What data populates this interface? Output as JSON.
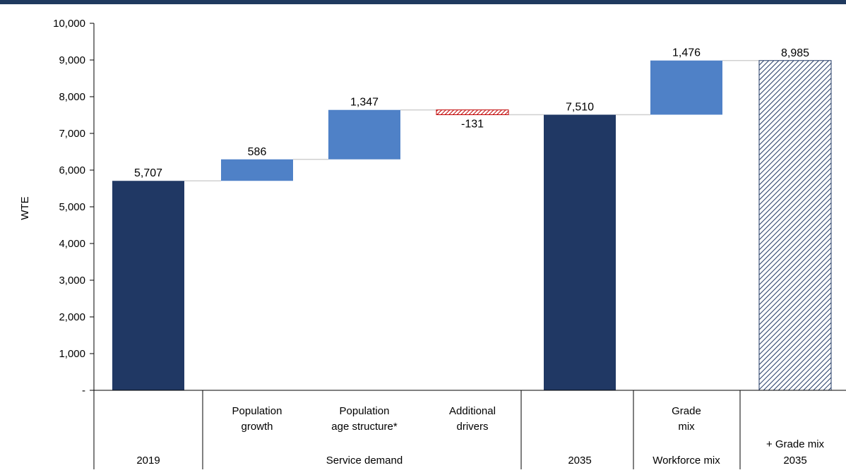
{
  "chart_data": {
    "type": "waterfall",
    "ylabel": "WTE",
    "ylim": [
      0,
      10000
    ],
    "yticks": [
      0,
      1000,
      2000,
      3000,
      4000,
      5000,
      6000,
      7000,
      8000,
      9000,
      10000
    ],
    "ytick_labels": [
      "-",
      "1,000",
      "2,000",
      "3,000",
      "4,000",
      "5,000",
      "6,000",
      "7,000",
      "8,000",
      "9,000",
      "10,000"
    ],
    "colors": {
      "total": "#203864",
      "increase": "#4f81c7",
      "decrease": "#c00000",
      "projected_hatch": "#203864"
    },
    "bars": [
      {
        "category": "2019",
        "kind": "total",
        "start": 0,
        "end": 5707,
        "label": "5,707"
      },
      {
        "category": "Population growth",
        "kind": "increase",
        "start": 5707,
        "end": 6293,
        "label": "586"
      },
      {
        "category": "Population age structure*",
        "kind": "increase",
        "start": 6293,
        "end": 7640,
        "label": "1,347"
      },
      {
        "category": "Additional drivers",
        "kind": "decrease",
        "start": 7640,
        "end": 7509,
        "label": "-131"
      },
      {
        "category": "2035",
        "kind": "total",
        "start": 0,
        "end": 7510,
        "label": "7,510"
      },
      {
        "category": "Grade mix",
        "kind": "increase",
        "start": 7510,
        "end": 8986,
        "label": "1,476"
      },
      {
        "category": "+ Grade mix 2035",
        "kind": "total-hatched",
        "start": 0,
        "end": 8985,
        "label": "8,985"
      }
    ],
    "category_labels": [
      [
        "Population",
        "growth"
      ],
      [
        "Population",
        "age structure*"
      ],
      [
        "Additional",
        "drivers"
      ],
      [
        "Grade",
        "mix"
      ],
      [
        "+ Grade mix"
      ]
    ],
    "group_labels": [
      "2019",
      "Service demand",
      "2035",
      "Workforce mix",
      "2035"
    ]
  }
}
